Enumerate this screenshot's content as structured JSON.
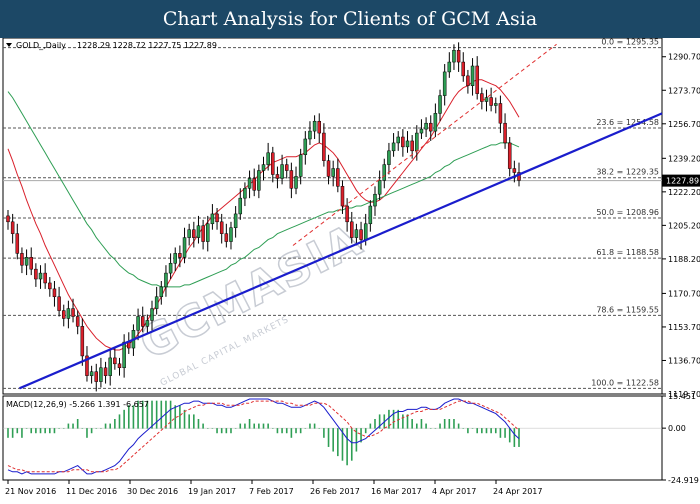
{
  "banner": {
    "title": "Chart Analysis for Clients of GCM Asia"
  },
  "chart_data": [
    {
      "type": "candlestick",
      "symbol_info": "GOLD_,Daily",
      "ohlc_text": "1228.29 1228.72 1227.75 1227.89",
      "ylim": [
        1119.7,
        1300.2
      ],
      "y_ticks": [
        "1290.70",
        "1273.70",
        "1256.70",
        "1239.20",
        "1222.20",
        "1205.20",
        "1188.20",
        "1170.70",
        "1153.70",
        "1136.70",
        "1119.70"
      ],
      "current_price": "1227.89",
      "x_ticks": [
        "21 Nov 2016",
        "11 Dec 2016",
        "30 Dec 2016",
        "19 Jan 2017",
        "7 Feb 2017",
        "26 Feb 2017",
        "16 Mar 2017",
        "4 Apr 2017",
        "24 Apr 2017"
      ],
      "fibonacci": [
        {
          "label": "0.0 = 1295.35",
          "value": 1295.35
        },
        {
          "label": "23.6 = 1254.58",
          "value": 1254.58
        },
        {
          "label": "38.2 = 1229.35",
          "value": 1229.35
        },
        {
          "label": "50.0 = 1208.96",
          "value": 1208.96
        },
        {
          "label": "61.8 = 1188.58",
          "value": 1188.58
        },
        {
          "label": "78.6 = 1159.55",
          "value": 1159.55
        },
        {
          "label": "100.0 = 1122.58",
          "value": 1122.58
        }
      ],
      "closes": [
        1207,
        1201,
        1191,
        1185,
        1189,
        1183,
        1178,
        1181,
        1176,
        1173,
        1169,
        1162,
        1158,
        1163,
        1159,
        1154,
        1139,
        1129,
        1131,
        1126,
        1133,
        1129,
        1138,
        1135,
        1133,
        1146,
        1143,
        1152,
        1159,
        1154,
        1157,
        1163,
        1169,
        1174,
        1181,
        1186,
        1191,
        1189,
        1199,
        1203,
        1199,
        1205,
        1197,
        1206,
        1211,
        1207,
        1201,
        1197,
        1204,
        1211,
        1219,
        1224,
        1229,
        1223,
        1233,
        1236,
        1242,
        1231,
        1229,
        1236,
        1233,
        1224,
        1230,
        1241,
        1249,
        1253,
        1258,
        1252,
        1238,
        1230,
        1234,
        1225,
        1215,
        1207,
        1199,
        1203,
        1198,
        1206,
        1215,
        1221,
        1228,
        1236,
        1243,
        1247,
        1250,
        1245,
        1248,
        1243,
        1252,
        1254,
        1257,
        1253,
        1262,
        1271,
        1283,
        1288,
        1294,
        1288,
        1281,
        1276,
        1286,
        1272,
        1268,
        1270,
        1266,
        1267,
        1257,
        1247,
        1234,
        1232,
        1228
      ],
      "moving_averages": [
        {
          "name": "MA red",
          "color": "#d9202b",
          "values": [
            1244,
            1238,
            1231,
            1225,
            1218,
            1212,
            1206,
            1201,
            1195,
            1190,
            1185,
            1180,
            1175,
            1170,
            1166,
            1162,
            1158,
            1154,
            1151,
            1148,
            1146,
            1144,
            1143,
            1142,
            1142,
            1143,
            1145,
            1147,
            1150,
            1153,
            1157,
            1161,
            1165,
            1169,
            1174,
            1178,
            1182,
            1186,
            1190,
            1194,
            1197,
            1201,
            1204,
            1207,
            1210,
            1212,
            1214,
            1216,
            1218,
            1220,
            1222,
            1224,
            1226,
            1228,
            1231,
            1233,
            1235,
            1237,
            1238,
            1239,
            1240,
            1240,
            1240,
            1241,
            1242,
            1244,
            1246,
            1247,
            1246,
            1244,
            1242,
            1239,
            1235,
            1231,
            1227,
            1223,
            1220,
            1218,
            1217,
            1217,
            1218,
            1220,
            1223,
            1226,
            1229,
            1232,
            1235,
            1238,
            1241,
            1244,
            1247,
            1250,
            1254,
            1258,
            1262,
            1266,
            1270,
            1273,
            1275,
            1276,
            1278,
            1279,
            1279,
            1278,
            1277,
            1276,
            1274,
            1271,
            1268,
            1264,
            1260
          ]
        },
        {
          "name": "MA green",
          "color": "#2e9e54",
          "values": [
            1273,
            1270,
            1266,
            1262,
            1258,
            1254,
            1250,
            1246,
            1242,
            1238,
            1234,
            1230,
            1226,
            1222,
            1218,
            1214,
            1210,
            1206,
            1203,
            1199,
            1196,
            1193,
            1190,
            1188,
            1185,
            1183,
            1181,
            1180,
            1178,
            1177,
            1176,
            1175,
            1175,
            1174,
            1174,
            1174,
            1174,
            1174,
            1175,
            1175,
            1176,
            1177,
            1178,
            1179,
            1180,
            1181,
            1182,
            1183,
            1185,
            1186,
            1188,
            1189,
            1191,
            1193,
            1194,
            1196,
            1198,
            1199,
            1201,
            1202,
            1203,
            1204,
            1205,
            1206,
            1207,
            1208,
            1209,
            1210,
            1211,
            1212,
            1212,
            1213,
            1213,
            1214,
            1214,
            1215,
            1215,
            1216,
            1217,
            1218,
            1219,
            1220,
            1221,
            1222,
            1223,
            1224,
            1225,
            1226,
            1227,
            1228,
            1229,
            1230,
            1232,
            1233,
            1235,
            1236,
            1238,
            1239,
            1240,
            1241,
            1242,
            1243,
            1244,
            1245,
            1246,
            1246,
            1247,
            1247,
            1247,
            1246,
            1245
          ]
        }
      ],
      "trendlines": [
        {
          "name": "support",
          "color": "#1a1dcc",
          "from": [
            0.025,
            1122.58
          ],
          "to": [
            1.0,
            1262.0
          ]
        },
        {
          "name": "channel",
          "color": "#e03030",
          "from": [
            0.44,
            1195.0
          ],
          "to": [
            0.84,
            1297.0
          ]
        }
      ],
      "watermark": {
        "main": "GCMASIA",
        "sub": "GLOBAL CAPITAL MARKETS"
      }
    },
    {
      "type": "macd",
      "label": "MACD(12,26,9) -5.266 1.391 -6.657",
      "ylim": [
        -24.919,
        15.451
      ],
      "y_ticks": [
        "15.451",
        "0.00",
        "-24.919"
      ],
      "macd_line": [
        -20,
        -21,
        -21,
        -22,
        -21,
        -22,
        -22,
        -22,
        -22,
        -22,
        -22,
        -21,
        -21,
        -20,
        -19,
        -18,
        -20,
        -22,
        -22,
        -21,
        -21,
        -20,
        -19,
        -18,
        -16,
        -13,
        -10,
        -8,
        -5,
        -3,
        -1,
        1,
        3,
        5,
        7,
        9,
        10,
        11,
        12,
        12,
        13,
        13,
        12,
        12,
        12,
        11,
        11,
        10,
        10,
        11,
        12,
        13,
        14,
        14,
        14,
        14,
        14,
        13,
        12,
        12,
        11,
        10,
        10,
        10,
        11,
        12,
        13,
        12,
        10,
        7,
        4,
        1,
        -2,
        -5,
        -7,
        -7,
        -6,
        -5,
        -3,
        -1,
        1,
        3,
        5,
        7,
        8,
        8,
        9,
        9,
        9,
        10,
        10,
        9,
        9,
        10,
        12,
        13,
        14,
        14,
        13,
        12,
        12,
        11,
        10,
        9,
        8,
        7,
        5,
        3,
        0,
        -3,
        -5
      ],
      "signal_line": [
        -18,
        -19,
        -20,
        -20,
        -21,
        -21,
        -21,
        -21,
        -21,
        -21,
        -21,
        -21,
        -21,
        -21,
        -20,
        -20,
        -20,
        -20,
        -21,
        -21,
        -21,
        -21,
        -20,
        -20,
        -19,
        -17,
        -15,
        -13,
        -11,
        -9,
        -7,
        -5,
        -3,
        -1,
        1,
        3,
        5,
        6,
        8,
        9,
        10,
        11,
        11,
        12,
        12,
        12,
        12,
        11,
        11,
        11,
        11,
        12,
        12,
        13,
        13,
        13,
        13,
        13,
        13,
        13,
        12,
        12,
        11,
        11,
        11,
        11,
        12,
        12,
        12,
        11,
        9,
        7,
        5,
        3,
        0,
        -2,
        -3,
        -4,
        -4,
        -3,
        -2,
        0,
        1,
        3,
        4,
        5,
        6,
        7,
        8,
        8,
        9,
        9,
        9,
        9,
        10,
        11,
        12,
        13,
        13,
        13,
        12,
        12,
        11,
        10,
        9,
        8,
        7,
        5,
        3,
        1,
        -1
      ],
      "histogram_color": "#2e9e54",
      "line_colors": {
        "macd": "#1a1dcc",
        "signal": "#e03030"
      }
    }
  ]
}
